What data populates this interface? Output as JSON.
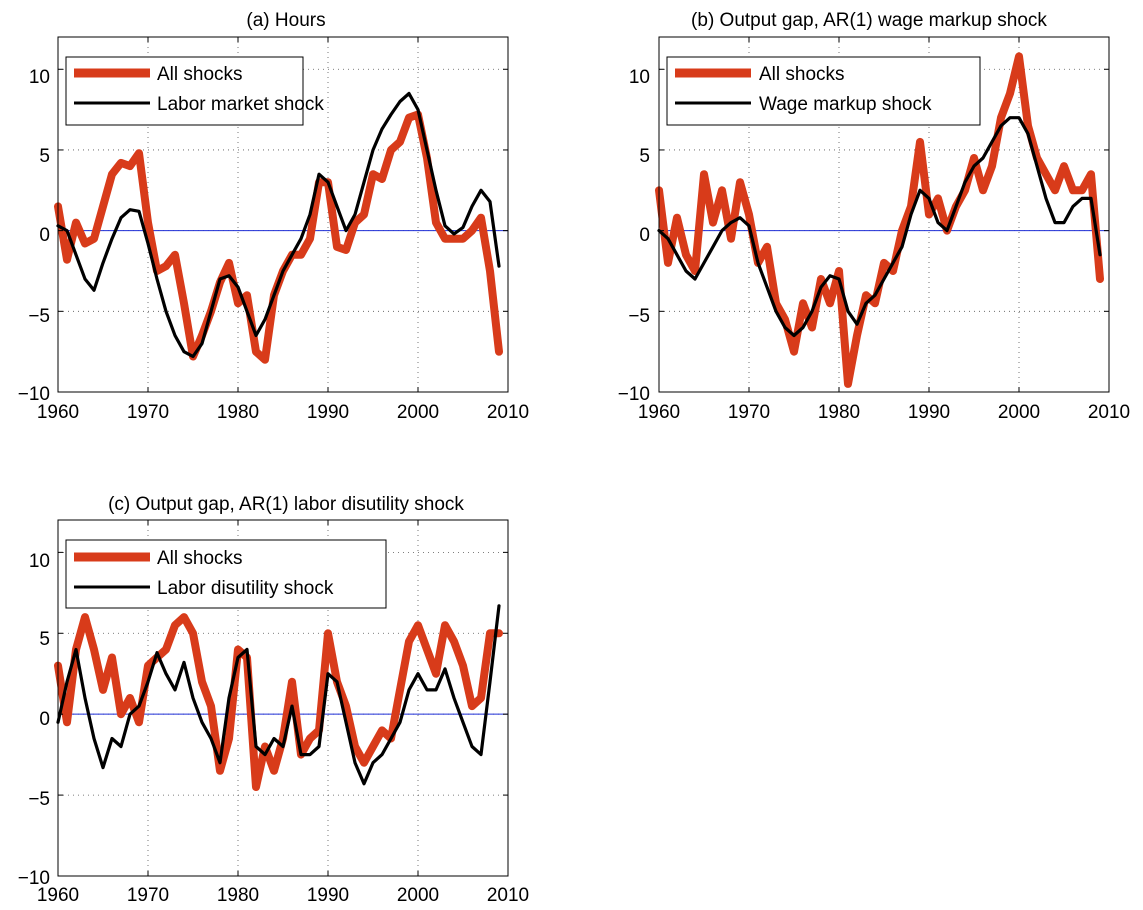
{
  "chart_data": [
    {
      "type": "line",
      "title": "(a) Hours",
      "xlim": [
        1960,
        2010
      ],
      "ylim": [
        -10,
        12
      ],
      "xticks": [
        1960,
        1970,
        1980,
        1990,
        2000,
        2010
      ],
      "yticks": [
        -10,
        -5,
        0,
        5,
        10
      ],
      "xtick_labels": [
        "1960",
        "1970",
        "1980",
        "1990",
        "2000",
        "2010"
      ],
      "ytick_labels": [
        "−10",
        "−5",
        "0",
        "5",
        "10"
      ],
      "grid": true,
      "zero_line": true,
      "legend_position": "top-left",
      "series": [
        {
          "name": "All shocks",
          "color": "#d83b1a",
          "x": [
            1960,
            1961,
            1962,
            1963,
            1964,
            1965,
            1966,
            1967,
            1968,
            1969,
            1970,
            1971,
            1972,
            1973,
            1974,
            1975,
            1976,
            1977,
            1978,
            1979,
            1980,
            1981,
            1982,
            1983,
            1984,
            1985,
            1986,
            1987,
            1988,
            1989,
            1990,
            1991,
            1992,
            1993,
            1994,
            1995,
            1996,
            1997,
            1998,
            1999,
            2000,
            2001,
            2002,
            2003,
            2004,
            2005,
            2006,
            2007,
            2008,
            2009
          ],
          "y": [
            1.5,
            -1.8,
            0.5,
            -0.8,
            -0.5,
            1.5,
            3.5,
            4.2,
            4.0,
            4.8,
            0.5,
            -2.5,
            -2.2,
            -1.5,
            -4.5,
            -7.8,
            -6.5,
            -5.0,
            -3.2,
            -2.0,
            -4.5,
            -4.0,
            -7.5,
            -8.0,
            -4.0,
            -2.5,
            -1.5,
            -1.5,
            -0.5,
            3.0,
            3.0,
            -1.0,
            -1.2,
            0.5,
            1.0,
            3.5,
            3.2,
            5.0,
            5.5,
            7.0,
            7.2,
            4.5,
            0.5,
            -0.5,
            -0.5,
            -0.5,
            0.0,
            0.8,
            -2.5,
            -7.5
          ]
        },
        {
          "name": "Labor market shock",
          "color": "#000000",
          "x": [
            1960,
            1961,
            1962,
            1963,
            1964,
            1965,
            1966,
            1967,
            1968,
            1969,
            1970,
            1971,
            1972,
            1973,
            1974,
            1975,
            1976,
            1977,
            1978,
            1979,
            1980,
            1981,
            1982,
            1983,
            1984,
            1985,
            1986,
            1987,
            1988,
            1989,
            1990,
            1991,
            1992,
            1993,
            1994,
            1995,
            1996,
            1997,
            1998,
            1999,
            2000,
            2001,
            2002,
            2003,
            2004,
            2005,
            2006,
            2007,
            2008,
            2009
          ],
          "y": [
            0.3,
            0.0,
            -1.5,
            -3.0,
            -3.7,
            -2.0,
            -0.5,
            0.8,
            1.3,
            1.2,
            -0.8,
            -3.0,
            -5.0,
            -6.5,
            -7.5,
            -7.8,
            -7.0,
            -5.0,
            -3.0,
            -2.8,
            -3.5,
            -5.0,
            -6.5,
            -5.5,
            -4.0,
            -2.5,
            -1.5,
            -0.5,
            1.0,
            3.5,
            3.0,
            1.5,
            0.0,
            1.0,
            3.0,
            5.0,
            6.3,
            7.2,
            8.0,
            8.5,
            7.5,
            5.0,
            2.5,
            0.3,
            -0.2,
            0.2,
            1.5,
            2.5,
            1.8,
            -2.2
          ]
        }
      ]
    },
    {
      "type": "line",
      "title": "(b) Output gap, AR(1) wage markup shock",
      "xlim": [
        1960,
        2010
      ],
      "ylim": [
        -10,
        12
      ],
      "xticks": [
        1960,
        1970,
        1980,
        1990,
        2000,
        2010
      ],
      "yticks": [
        -10,
        -5,
        0,
        5,
        10
      ],
      "xtick_labels": [
        "1960",
        "1970",
        "1980",
        "1990",
        "2000",
        "2010"
      ],
      "ytick_labels": [
        "−10",
        "−5",
        "0",
        "5",
        "10"
      ],
      "grid": true,
      "zero_line": true,
      "legend_position": "top-left",
      "series": [
        {
          "name": "All shocks",
          "color": "#d83b1a",
          "x": [
            1960,
            1961,
            1962,
            1963,
            1964,
            1965,
            1966,
            1967,
            1968,
            1969,
            1970,
            1971,
            1972,
            1973,
            1974,
            1975,
            1976,
            1977,
            1978,
            1979,
            1980,
            1981,
            1982,
            1983,
            1984,
            1985,
            1986,
            1987,
            1988,
            1989,
            1990,
            1991,
            1992,
            1993,
            1994,
            1995,
            1996,
            1997,
            1998,
            1999,
            2000,
            2001,
            2002,
            2003,
            2004,
            2005,
            2006,
            2007,
            2008,
            2009
          ],
          "y": [
            2.5,
            -2.0,
            0.8,
            -1.5,
            -2.5,
            3.5,
            0.5,
            2.5,
            -0.5,
            3.0,
            1.0,
            -2.0,
            -1.0,
            -4.5,
            -5.5,
            -7.5,
            -4.5,
            -6.0,
            -3.0,
            -4.5,
            -2.5,
            -9.5,
            -6.5,
            -4.0,
            -4.5,
            -2.0,
            -2.5,
            0.0,
            1.5,
            5.5,
            1.0,
            2.0,
            0.0,
            1.5,
            2.5,
            4.5,
            2.5,
            4.0,
            7.0,
            8.5,
            10.8,
            6.5,
            4.5,
            3.5,
            2.5,
            4.0,
            2.5,
            2.5,
            3.5,
            -3.0
          ]
        },
        {
          "name": "Wage markup shock",
          "color": "#000000",
          "x": [
            1960,
            1961,
            1962,
            1963,
            1964,
            1965,
            1966,
            1967,
            1968,
            1969,
            1970,
            1971,
            1972,
            1973,
            1974,
            1975,
            1976,
            1977,
            1978,
            1979,
            1980,
            1981,
            1982,
            1983,
            1984,
            1985,
            1986,
            1987,
            1988,
            1989,
            1990,
            1991,
            1992,
            1993,
            1994,
            1995,
            1996,
            1997,
            1998,
            1999,
            2000,
            2001,
            2002,
            2003,
            2004,
            2005,
            2006,
            2007,
            2008,
            2009
          ],
          "y": [
            0.0,
            -0.5,
            -1.5,
            -2.5,
            -3.0,
            -2.0,
            -1.0,
            0.0,
            0.5,
            0.8,
            0.3,
            -2.0,
            -3.5,
            -5.0,
            -6.0,
            -6.5,
            -6.0,
            -5.0,
            -3.5,
            -2.8,
            -3.0,
            -5.0,
            -5.8,
            -4.5,
            -4.0,
            -3.0,
            -2.0,
            -1.0,
            1.0,
            2.5,
            2.0,
            0.5,
            0.0,
            1.5,
            3.0,
            4.0,
            4.5,
            5.5,
            6.5,
            7.0,
            7.0,
            6.0,
            4.0,
            2.0,
            0.5,
            0.5,
            1.5,
            2.0,
            2.0,
            -1.5
          ]
        }
      ]
    },
    {
      "type": "line",
      "title": "(c) Output gap, AR(1) labor disutility shock",
      "xlim": [
        1960,
        2010
      ],
      "ylim": [
        -10,
        12
      ],
      "xticks": [
        1960,
        1970,
        1980,
        1990,
        2000,
        2010
      ],
      "yticks": [
        -10,
        -5,
        0,
        5,
        10
      ],
      "xtick_labels": [
        "1960",
        "1970",
        "1980",
        "1990",
        "2000",
        "2010"
      ],
      "ytick_labels": [
        "−10",
        "−5",
        "0",
        "5",
        "10"
      ],
      "grid": true,
      "zero_line": true,
      "legend_position": "top-left",
      "series": [
        {
          "name": "All shocks",
          "color": "#d83b1a",
          "x": [
            1960,
            1961,
            1962,
            1963,
            1964,
            1965,
            1966,
            1967,
            1968,
            1969,
            1970,
            1971,
            1972,
            1973,
            1974,
            1975,
            1976,
            1977,
            1978,
            1979,
            1980,
            1981,
            1982,
            1983,
            1984,
            1985,
            1986,
            1987,
            1988,
            1989,
            1990,
            1991,
            1992,
            1993,
            1994,
            1995,
            1996,
            1997,
            1998,
            1999,
            2000,
            2001,
            2002,
            2003,
            2004,
            2005,
            2006,
            2007,
            2008,
            2009
          ],
          "y": [
            3.0,
            -0.5,
            4.0,
            6.0,
            4.0,
            1.5,
            3.5,
            0.0,
            1.0,
            -0.5,
            3.0,
            3.5,
            4.0,
            5.5,
            6.0,
            5.0,
            2.0,
            0.5,
            -3.5,
            -1.5,
            4.0,
            3.5,
            -4.5,
            -2.0,
            -3.5,
            -1.5,
            2.0,
            -2.5,
            -1.5,
            -1.0,
            5.0,
            2.0,
            0.5,
            -2.0,
            -3.0,
            -2.0,
            -1.0,
            -1.5,
            1.5,
            4.5,
            5.5,
            4.0,
            2.5,
            5.5,
            4.5,
            3.0,
            0.5,
            1.0,
            5.0,
            5.0
          ]
        },
        {
          "name": "Labor disutility shock",
          "color": "#000000",
          "x": [
            1960,
            1961,
            1962,
            1963,
            1964,
            1965,
            1966,
            1967,
            1968,
            1969,
            1970,
            1971,
            1972,
            1973,
            1974,
            1975,
            1976,
            1977,
            1978,
            1979,
            1980,
            1981,
            1982,
            1983,
            1984,
            1985,
            1986,
            1987,
            1988,
            1989,
            1990,
            1991,
            1992,
            1993,
            1994,
            1995,
            1996,
            1997,
            1998,
            1999,
            2000,
            2001,
            2002,
            2003,
            2004,
            2005,
            2006,
            2007,
            2008,
            2009
          ],
          "y": [
            -0.5,
            2.0,
            4.0,
            1.0,
            -1.5,
            -3.3,
            -1.5,
            -2.0,
            0.0,
            0.5,
            2.0,
            3.8,
            2.5,
            1.5,
            3.2,
            1.0,
            -0.5,
            -1.5,
            -3.0,
            1.0,
            3.5,
            4.0,
            -2.0,
            -2.5,
            -1.5,
            -2.0,
            0.5,
            -2.5,
            -2.5,
            -2.0,
            2.5,
            2.0,
            -0.5,
            -3.0,
            -4.3,
            -3.0,
            -2.5,
            -1.5,
            -0.5,
            1.5,
            2.5,
            1.5,
            1.5,
            2.8,
            1.0,
            -0.5,
            -2.0,
            -2.5,
            2.0,
            6.7
          ]
        }
      ]
    }
  ]
}
